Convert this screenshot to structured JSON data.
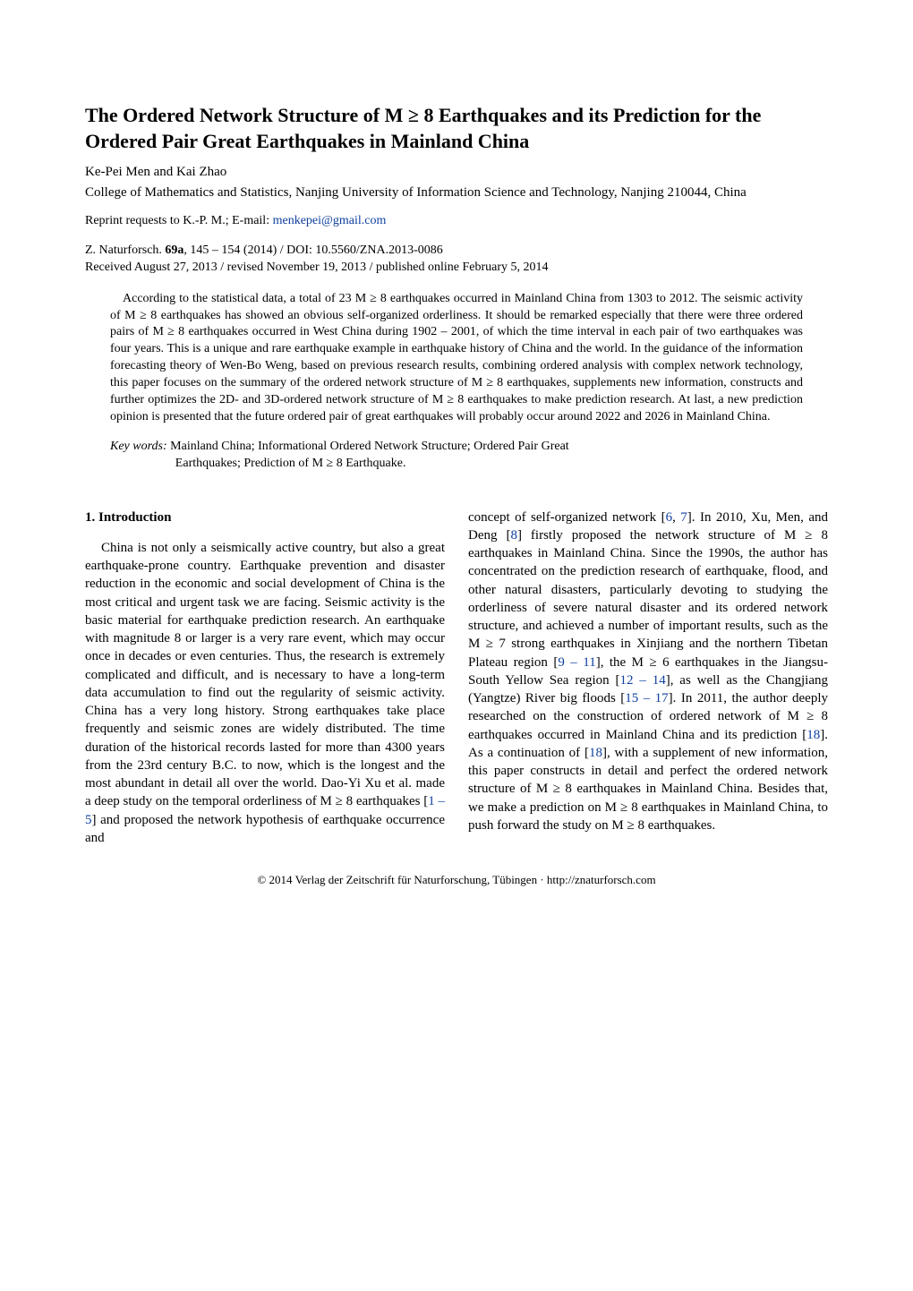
{
  "title": "The Ordered Network Structure of M ≥ 8 Earthquakes and its Prediction for the Ordered Pair Great Earthquakes in Mainland China",
  "authors": "Ke-Pei Men and Kai Zhao",
  "affiliation": "College of Mathematics and Statistics, Nanjing University of Information Science and Technology, Nanjing 210044, China",
  "reprint_prefix": "Reprint requests to K.-P. M.; E-mail: ",
  "email": "menkepei@gmail.com",
  "citation_prefix": "Z. Naturforsch. ",
  "citation_vol": "69a",
  "citation_suffix": ", 145 – 154 (2014) / DOI: 10.5560/ZNA.2013-0086",
  "received": "Received August 27, 2013 / revised November 19, 2013 / published online February 5, 2014",
  "abstract": "According to the statistical data, a total of 23 M ≥ 8 earthquakes occurred in Mainland China from 1303 to 2012. The seismic activity of M ≥ 8 earthquakes has showed an obvious self-organized orderliness. It should be remarked especially that there were three ordered pairs of M ≥ 8 earthquakes occurred in West China during 1902 – 2001, of which the time interval in each pair of two earthquakes was four years. This is a unique and rare earthquake example in earthquake history of China and the world. In the guidance of the information forecasting theory of Wen-Bo Weng, based on previous research results, combining ordered analysis with complex network technology, this paper focuses on the summary of the ordered network structure of M ≥ 8 earthquakes, supplements new information, constructs and further optimizes the 2D- and 3D-ordered network structure of M ≥ 8 earthquakes to make prediction research. At last, a new prediction opinion is presented that the future ordered pair of great earthquakes will probably occur around 2022 and 2026 in Mainland China.",
  "keywords_label": "Key words:",
  "keywords_line1": " Mainland China; Informational Ordered Network Structure; Ordered Pair Great",
  "keywords_line2": "Earthquakes; Prediction of M ≥ 8 Earthquake.",
  "section_heading": "1. Introduction",
  "col1_p1_a": "China is not only a seismically active country, but also a great earthquake-prone country. Earthquake prevention and disaster reduction in the economic and social development of China is the most critical and urgent task we are facing. Seismic activity is the basic material for earthquake prediction research. An earthquake with magnitude 8 or larger is a very rare event, which may occur once in decades or even centuries. Thus, the research is extremely complicated and difficult, and is necessary to have a long-term data accumulation to find out the regularity of seismic activity. China has a very long history. Strong earthquakes take place frequently and seismic zones are widely distributed. The time duration of the historical records lasted for more than 4300 years from the 23rd century B.C. to now, which is the longest and the most abundant in detail all over the world. Dao-Yi Xu et al. made a deep study on the temporal orderliness of M ≥ 8 earthquakes [",
  "ref_1_5": "1 – 5",
  "col1_p1_b": "] and proposed the network hypothesis of earthquake occurrence and",
  "col2_p1_a": "concept of self-organized network [",
  "ref_6": "6",
  "comma_sep": ", ",
  "ref_7": "7",
  "col2_p1_b": "]. In 2010, Xu, Men, and Deng [",
  "ref_8": "8",
  "col2_p1_c": "] firstly proposed the network structure of M ≥ 8 earthquakes in Mainland China. Since the 1990s, the author has concentrated on the prediction research of earthquake, flood, and other natural disasters, particularly devoting to studying the orderliness of severe natural disaster and its ordered network structure, and achieved a number of important results, such as the M ≥ 7 strong earthquakes in Xinjiang and the northern Tibetan Plateau region [",
  "ref_9_11": "9 – 11",
  "col2_p1_d": "], the M ≥ 6 earthquakes in the Jiangsu-South Yellow Sea region [",
  "ref_12_14": "12 – 14",
  "col2_p1_e": "], as well as the Changjiang (Yangtze) River big floods [",
  "ref_15_17": "15 – 17",
  "col2_p1_f": "]. In 2011, the author deeply researched on the construction of ordered network of M ≥ 8 earthquakes occurred in Mainland China and its prediction [",
  "ref_18a": "18",
  "col2_p1_g": "]. As a continuation of [",
  "ref_18b": "18",
  "col2_p1_h": "], with a supplement of new information, this paper constructs in detail and perfect the ordered network structure of M ≥ 8 earthquakes in Mainland China. Besides that, we make a prediction on M ≥ 8 earthquakes in Mainland China, to push forward the study on M ≥ 8 earthquakes.",
  "footer": "© 2014 Verlag der Zeitschrift für Naturforschung, Tübingen · http://znaturforsch.com"
}
